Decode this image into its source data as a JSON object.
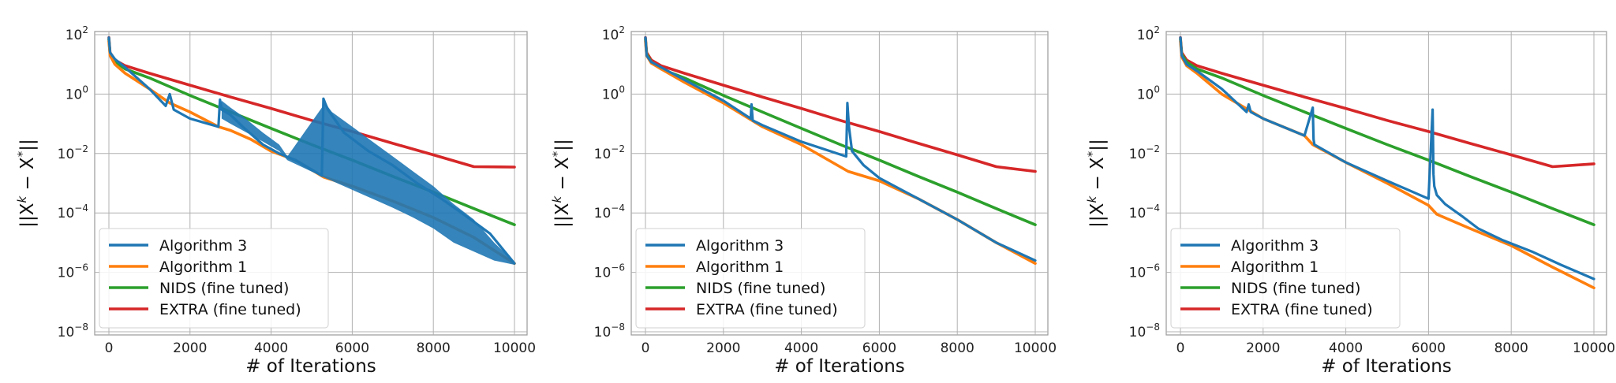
{
  "chart_data": [
    {
      "type": "line",
      "title": "",
      "xlabel": "# of Iterations",
      "ylabel": "||X^k − X^*||",
      "y_scale": "log",
      "xlim": [
        0,
        10000
      ],
      "ylim": [
        1e-08,
        100
      ],
      "x_ticks": [
        "0",
        "2000",
        "4000",
        "6000",
        "8000",
        "10000"
      ],
      "y_ticks": [
        {
          "base": "10",
          "exp": "2"
        },
        {
          "base": "10",
          "exp": "0"
        },
        {
          "base": "10",
          "exp": "−2"
        },
        {
          "base": "10",
          "exp": "−4"
        },
        {
          "base": "10",
          "exp": "−6"
        },
        {
          "base": "10",
          "exp": "−8"
        }
      ],
      "grid": true,
      "legend_position": "lower-left",
      "series": [
        {
          "name": "Algorithm 3",
          "color": "#1f77b4",
          "x": [
            0,
            30,
            150,
            400,
            1000,
            1400,
            1500,
            1600,
            2000,
            2700,
            2740,
            2780,
            3000,
            3300,
            3800,
            4200,
            4600,
            5250,
            5290,
            5330,
            5400,
            5800,
            6400,
            7000,
            7600,
            8200,
            8800,
            9400,
            10000
          ],
          "y": [
            80,
            25,
            15,
            8,
            1.5,
            0.4,
            1.0,
            0.3,
            0.15,
            0.08,
            0.65,
            0.3,
            0.2,
            0.08,
            0.02,
            0.01,
            0.006,
            0.0018,
            0.7,
            0.5,
            0.3,
            0.05,
            0.012,
            0.004,
            0.001,
            0.0003,
            8e-05,
            2e-05,
            2e-06
          ],
          "band": {
            "x": [
              2780,
              3000,
              3300,
              3800,
              4200,
              4400,
              5330,
              5500,
              6000,
              6500,
              7000,
              7500,
              8000,
              8500,
              9000,
              9500,
              10000
            ],
            "y_upper": [
              0.6,
              0.35,
              0.18,
              0.05,
              0.02,
              0.008,
              0.5,
              0.25,
              0.08,
              0.025,
              0.008,
              0.0025,
              0.0008,
              0.0002,
              6e-05,
              1e-05,
              2.2e-06
            ],
            "y_lower": [
              0.15,
              0.1,
              0.06,
              0.025,
              0.012,
              0.006,
              0.0015,
              0.0012,
              0.0006,
              0.0003,
              0.00015,
              7e-05,
              3e-05,
              1e-05,
              5e-06,
              2.5e-06,
              1.8e-06
            ]
          }
        },
        {
          "name": "Algorithm 1",
          "color": "#ff7f0e",
          "x": [
            0,
            30,
            150,
            400,
            1000,
            1500,
            2000,
            2700,
            3000,
            3500,
            4000,
            4600,
            5300,
            6000,
            7000,
            8000,
            9000,
            10000
          ],
          "y": [
            60,
            20,
            10,
            5,
            1.5,
            0.5,
            0.25,
            0.08,
            0.06,
            0.03,
            0.012,
            0.006,
            0.0016,
            0.0008,
            0.00025,
            7e-05,
            1.5e-05,
            2e-06
          ]
        },
        {
          "name": "NIDS (fine tuned)",
          "color": "#2ca02c",
          "x": [
            0,
            30,
            150,
            400,
            1000,
            2000,
            3000,
            4000,
            5000,
            6000,
            7000,
            8000,
            9000,
            10000
          ],
          "y": [
            70,
            22,
            12,
            7,
            3.5,
            0.9,
            0.25,
            0.07,
            0.02,
            0.006,
            0.0017,
            0.0005,
            0.00014,
            4e-05
          ]
        },
        {
          "name": "EXTRA (fine tuned)",
          "color": "#d62728",
          "x": [
            0,
            30,
            150,
            400,
            1000,
            2000,
            3000,
            4000,
            5000,
            6000,
            7000,
            8000,
            9000,
            10000
          ],
          "y": [
            80,
            25,
            14,
            9,
            5,
            2.0,
            0.8,
            0.33,
            0.13,
            0.055,
            0.022,
            0.009,
            0.0036,
            0.0035
          ]
        }
      ]
    },
    {
      "type": "line",
      "title": "",
      "xlabel": "# of Iterations",
      "ylabel": "||X^k − X^*||",
      "y_scale": "log",
      "xlim": [
        0,
        10000
      ],
      "ylim": [
        1e-08,
        100
      ],
      "x_ticks": [
        "0",
        "2000",
        "4000",
        "6000",
        "8000",
        "10000"
      ],
      "y_ticks": [
        {
          "base": "10",
          "exp": "2"
        },
        {
          "base": "10",
          "exp": "0"
        },
        {
          "base": "10",
          "exp": "−2"
        },
        {
          "base": "10",
          "exp": "−4"
        },
        {
          "base": "10",
          "exp": "−6"
        },
        {
          "base": "10",
          "exp": "−8"
        }
      ],
      "grid": true,
      "legend_position": "lower-left",
      "series": [
        {
          "name": "Algorithm 3",
          "color": "#1f77b4",
          "x": [
            0,
            30,
            150,
            400,
            1000,
            2000,
            2700,
            2720,
            2750,
            3000,
            4000,
            5150,
            5180,
            5220,
            5300,
            5600,
            6000,
            7000,
            8000,
            9000,
            10000
          ],
          "y": [
            80,
            20,
            12,
            8,
            3,
            0.6,
            0.15,
            0.45,
            0.13,
            0.09,
            0.025,
            0.008,
            0.5,
            0.08,
            0.012,
            0.004,
            0.0015,
            0.0003,
            6e-05,
            1e-05,
            2.5e-06
          ]
        },
        {
          "name": "Algorithm 1",
          "color": "#ff7f0e",
          "x": [
            0,
            30,
            150,
            400,
            1000,
            2000,
            3000,
            4000,
            5200,
            6000,
            7000,
            8000,
            9000,
            10000
          ],
          "y": [
            60,
            20,
            11,
            7,
            2.5,
            0.5,
            0.08,
            0.02,
            0.0025,
            0.0012,
            0.0003,
            6e-05,
            1e-05,
            2e-06
          ]
        },
        {
          "name": "NIDS (fine tuned)",
          "color": "#2ca02c",
          "x": [
            0,
            30,
            150,
            400,
            1000,
            2000,
            3000,
            4000,
            5000,
            6000,
            7000,
            8000,
            9000,
            10000
          ],
          "y": [
            70,
            22,
            12,
            7,
            3.5,
            0.9,
            0.25,
            0.07,
            0.02,
            0.006,
            0.0017,
            0.0005,
            0.00014,
            4e-05
          ]
        },
        {
          "name": "EXTRA (fine tuned)",
          "color": "#d62728",
          "x": [
            0,
            30,
            150,
            400,
            1000,
            2000,
            3000,
            4000,
            5000,
            6000,
            7000,
            8000,
            9000,
            10000
          ],
          "y": [
            80,
            25,
            14,
            9,
            5,
            2.0,
            0.8,
            0.33,
            0.13,
            0.055,
            0.022,
            0.009,
            0.0036,
            0.0025
          ]
        }
      ]
    },
    {
      "type": "line",
      "title": "",
      "xlabel": "# of Iterations",
      "ylabel": "||X^k − X^*||",
      "y_scale": "log",
      "xlim": [
        0,
        10000
      ],
      "ylim": [
        1e-08,
        100
      ],
      "x_ticks": [
        "0",
        "2000",
        "4000",
        "6000",
        "8000",
        "10000"
      ],
      "y_ticks": [
        {
          "base": "10",
          "exp": "2"
        },
        {
          "base": "10",
          "exp": "0"
        },
        {
          "base": "10",
          "exp": "−2"
        },
        {
          "base": "10",
          "exp": "−4"
        },
        {
          "base": "10",
          "exp": "−6"
        },
        {
          "base": "10",
          "exp": "−8"
        }
      ],
      "grid": true,
      "legend_position": "lower-left",
      "series": [
        {
          "name": "Algorithm 3",
          "color": "#1f77b4",
          "x": [
            0,
            30,
            150,
            400,
            1000,
            1600,
            1650,
            1700,
            2000,
            3000,
            3200,
            3220,
            3240,
            4000,
            5000,
            6000,
            6100,
            6120,
            6140,
            6200,
            6400,
            6800,
            7200,
            7800,
            8500,
            9200,
            10000
          ],
          "y": [
            80,
            20,
            10,
            6,
            1.5,
            0.25,
            0.45,
            0.25,
            0.15,
            0.04,
            0.35,
            0.03,
            0.02,
            0.005,
            0.0012,
            0.0003,
            0.3,
            0.002,
            0.0008,
            0.0004,
            0.0002,
            8e-05,
            3e-05,
            1.2e-05,
            5e-06,
            1.8e-06,
            6e-07
          ]
        },
        {
          "name": "Algorithm 1",
          "color": "#ff7f0e",
          "x": [
            0,
            30,
            150,
            400,
            1000,
            2000,
            3000,
            3200,
            4000,
            5000,
            6000,
            6200,
            7000,
            8000,
            9000,
            10000
          ],
          "y": [
            60,
            18,
            9,
            5,
            1,
            0.15,
            0.04,
            0.02,
            0.005,
            0.001,
            0.00018,
            9e-05,
            3e-05,
            8e-06,
            1.5e-06,
            3e-07
          ]
        },
        {
          "name": "NIDS (fine tuned)",
          "color": "#2ca02c",
          "x": [
            0,
            30,
            150,
            400,
            1000,
            2000,
            3000,
            4000,
            5000,
            6000,
            7000,
            8000,
            9000,
            10000
          ],
          "y": [
            70,
            22,
            12,
            7,
            3.5,
            0.9,
            0.25,
            0.07,
            0.02,
            0.006,
            0.0017,
            0.0005,
            0.00014,
            4e-05
          ]
        },
        {
          "name": "EXTRA (fine tuned)",
          "color": "#d62728",
          "x": [
            0,
            30,
            150,
            400,
            1000,
            2000,
            3000,
            4000,
            5000,
            6000,
            7000,
            8000,
            9000,
            10000
          ],
          "y": [
            80,
            25,
            14,
            9,
            5,
            2.0,
            0.8,
            0.33,
            0.13,
            0.055,
            0.022,
            0.009,
            0.0036,
            0.0045
          ]
        }
      ]
    }
  ]
}
